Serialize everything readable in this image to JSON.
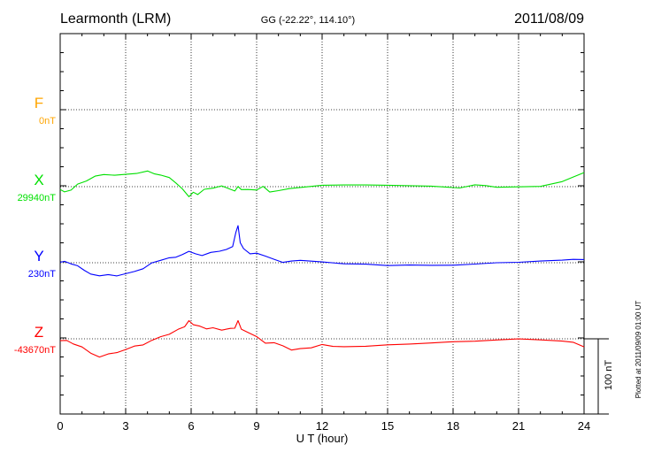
{
  "header": {
    "station": "Learmonth (LRM)",
    "coords": "GG (-22.22°, 114.10°)",
    "date": "2011/08/09"
  },
  "footer": {
    "plotted_at": "Plotted at 2011/09/09 01:00 UT"
  },
  "chart_data": {
    "type": "line",
    "xlabel": "U T (hour)",
    "xlim": [
      0,
      24
    ],
    "xticks": [
      0,
      3,
      6,
      9,
      12,
      15,
      18,
      21,
      24
    ],
    "grid": true,
    "scale_bar_label": "100 nT",
    "scale_bar_nT": 100,
    "series": [
      {
        "name": "F",
        "baseline_label": "0nT",
        "color": "#ffa500",
        "x": [],
        "values": []
      },
      {
        "name": "X",
        "baseline_label": "29940nT",
        "color": "#00e000",
        "x": [
          0,
          0.2,
          0.5,
          0.8,
          1.2,
          1.6,
          2.0,
          2.5,
          3.0,
          3.5,
          4.0,
          4.3,
          4.6,
          5.0,
          5.3,
          5.6,
          5.9,
          6.1,
          6.3,
          6.6,
          7.0,
          7.4,
          7.7,
          8.0,
          8.15,
          8.3,
          8.6,
          9.0,
          9.3,
          9.6,
          10.0,
          10.5,
          11.0,
          11.5,
          12.0,
          13.0,
          14.0,
          15.0,
          16.0,
          17.0,
          17.8,
          18.3,
          19.0,
          19.5,
          20.0,
          21.0,
          22.0,
          23.0,
          23.5,
          24.0
        ],
        "values": [
          -3,
          -5,
          -4,
          2,
          7,
          12,
          13,
          12,
          13,
          14,
          17,
          15,
          14,
          10,
          5,
          -2,
          -12,
          -6,
          -8,
          -3,
          -1,
          0,
          -2,
          -4,
          1,
          -3,
          -4,
          -3,
          0,
          -7,
          -4,
          -2,
          -1,
          0,
          1,
          1,
          1,
          1,
          1,
          1,
          0,
          -1,
          3,
          2,
          0,
          0,
          0,
          5,
          10,
          15
        ]
      },
      {
        "name": "Y",
        "baseline_label": "230nT",
        "color": "#0000ff",
        "x": [
          0,
          0.2,
          0.5,
          0.8,
          1.1,
          1.4,
          1.8,
          2.2,
          2.6,
          3.0,
          3.4,
          3.8,
          4.2,
          4.6,
          5.0,
          5.3,
          5.6,
          5.9,
          6.2,
          6.5,
          6.9,
          7.3,
          7.6,
          7.9,
          8.05,
          8.15,
          8.25,
          8.4,
          8.7,
          9.0,
          9.4,
          9.8,
          10.2,
          10.6,
          11.0,
          11.5,
          12.0,
          13.0,
          14.0,
          15.0,
          16.0,
          17.0,
          18.0,
          19.0,
          20.0,
          21.0,
          22.0,
          23.0,
          23.5,
          24.0
        ],
        "values": [
          0,
          2,
          -2,
          -4,
          -8,
          -12,
          -15,
          -14,
          -14,
          -13,
          -10,
          -6,
          -1,
          3,
          6,
          7,
          9,
          12,
          10,
          9,
          11,
          13,
          14,
          18,
          35,
          42,
          22,
          16,
          11,
          11,
          8,
          3,
          1,
          2,
          2,
          1,
          0,
          -2,
          -2,
          -3,
          -2,
          -2,
          -2,
          -1,
          0,
          0,
          1,
          2,
          3,
          3
        ]
      },
      {
        "name": "Z",
        "baseline_label": "-43670nT",
        "color": "#ff0000",
        "x": [
          0,
          0.3,
          0.6,
          1.0,
          1.4,
          1.8,
          2.2,
          2.6,
          3.0,
          3.4,
          3.8,
          4.2,
          4.6,
          5.0,
          5.4,
          5.7,
          5.9,
          6.1,
          6.4,
          6.7,
          7.0,
          7.4,
          7.8,
          8.0,
          8.15,
          8.3,
          8.6,
          9.0,
          9.4,
          9.8,
          10.2,
          10.6,
          11.0,
          11.5,
          12.0,
          12.5,
          13.0,
          14.0,
          15.0,
          16.0,
          17.0,
          18.0,
          19.0,
          20.0,
          21.0,
          22.0,
          23.0,
          23.5,
          24.0
        ],
        "values": [
          -3,
          -2,
          -5,
          -10,
          -16,
          -20,
          -18,
          -15,
          -12,
          -9,
          -6,
          -2,
          2,
          6,
          10,
          14,
          20,
          15,
          14,
          12,
          13,
          10,
          11,
          12,
          20,
          10,
          7,
          2,
          -4,
          -5,
          -8,
          -12,
          -12,
          -11,
          -7,
          -9,
          -9,
          -8,
          -6,
          -5,
          -4,
          -3,
          -3,
          -2,
          -1,
          -2,
          -3,
          -4,
          -9
        ]
      }
    ]
  }
}
